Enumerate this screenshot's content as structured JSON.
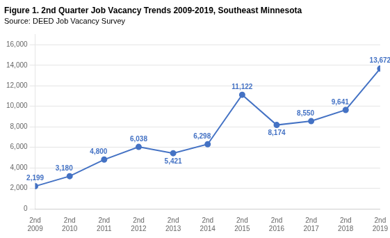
{
  "chart_data": {
    "type": "line",
    "title": "Figure 1. 2nd Quarter Job Vacancy Trends 2009-2019, Southeast Minnesota",
    "subtitle": "Source: DEED Job Vacancy Survey",
    "categories": [
      "2nd\n2009",
      "2nd\n2010",
      "2nd\n2011",
      "2nd\n2012",
      "2nd\n2013",
      "2nd\n2014",
      "2nd\n2015",
      "2nd\n2016",
      "2nd\n2017",
      "2nd\n2018",
      "2nd\n2019"
    ],
    "values": [
      2199,
      3180,
      4800,
      6038,
      5421,
      6298,
      11122,
      8174,
      8550,
      9641,
      13672
    ],
    "value_labels": [
      "2,199",
      "3,180",
      "4,800",
      "6,038",
      "5,421",
      "6,298",
      "11,122",
      "8,174",
      "8,550",
      "9,641",
      "13,672"
    ],
    "data_labels": true,
    "color": "#4472C4",
    "marker": "circle",
    "ylim": [
      0,
      17000
    ],
    "yticks": [
      0,
      {
        "value": 2000,
        "label": "2,000"
      },
      {
        "value": 4000,
        "label": "4,000"
      },
      {
        "value": 6000,
        "label": "6,000"
      },
      {
        "value": 8000,
        "label": "8,000"
      },
      {
        "value": 10000,
        "label": "10,000"
      },
      {
        "value": 12000,
        "label": "12,000"
      },
      {
        "value": 14000,
        "label": "14,000"
      },
      {
        "value": 16000,
        "label": "16,000"
      }
    ],
    "grid": true
  }
}
